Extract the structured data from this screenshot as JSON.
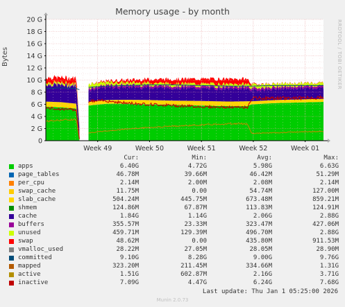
{
  "title": "Memory usage - by month",
  "side_label": "RRDTOOL / TOBI OETIKER",
  "footer": "Last update: Thu Jan  1 05:25:00 2026",
  "generator": "Munin 2.0.73",
  "columns": [
    "Cur:",
    "Min:",
    "Avg:",
    "Max:"
  ],
  "legend": [
    {
      "name": "apps",
      "color": "#00cc00",
      "cur": "6.40G",
      "min": "4.72G",
      "avg": "5.98G",
      "max": "6.63G"
    },
    {
      "name": "page_tables",
      "color": "#0066b3",
      "cur": "46.78M",
      "min": "39.66M",
      "avg": "46.42M",
      "max": "51.29M"
    },
    {
      "name": "per_cpu",
      "color": "#ff8000",
      "cur": "2.14M",
      "min": "2.00M",
      "avg": "2.08M",
      "max": "2.14M"
    },
    {
      "name": "swap_cache",
      "color": "#ffcc00",
      "cur": "11.75M",
      "min": "0.00",
      "avg": "54.74M",
      "max": "127.00M"
    },
    {
      "name": "slab_cache",
      "color": "#ffd700",
      "cur": "504.24M",
      "min": "445.75M",
      "avg": "673.48M",
      "max": "859.21M"
    },
    {
      "name": "shmem",
      "color": "#008f00",
      "cur": "124.86M",
      "min": "67.87M",
      "avg": "113.83M",
      "max": "124.91M"
    },
    {
      "name": "cache",
      "color": "#330099",
      "cur": "1.84G",
      "min": "1.14G",
      "avg": "2.06G",
      "max": "2.88G"
    },
    {
      "name": "buffers",
      "color": "#990099",
      "cur": "355.57M",
      "min": "23.33M",
      "avg": "323.47M",
      "max": "427.06M"
    },
    {
      "name": "unused",
      "color": "#ccff00",
      "cur": "459.71M",
      "min": "129.39M",
      "avg": "496.70M",
      "max": "2.88G"
    },
    {
      "name": "swap",
      "color": "#ff0000",
      "cur": "48.62M",
      "min": "0.00",
      "avg": "435.80M",
      "max": "911.53M"
    },
    {
      "name": "vmalloc_used",
      "color": "#808080",
      "cur": "28.22M",
      "min": "27.05M",
      "avg": "28.05M",
      "max": "28.90M"
    },
    {
      "name": "committed",
      "color": "#004d79",
      "cur": "9.10G",
      "min": "8.28G",
      "avg": "9.00G",
      "max": "9.76G"
    },
    {
      "name": "mapped",
      "color": "#b35a00",
      "cur": "323.20M",
      "min": "211.45M",
      "avg": "334.66M",
      "max": "1.31G"
    },
    {
      "name": "active",
      "color": "#b38f00",
      "cur": "1.51G",
      "min": "602.87M",
      "avg": "2.16G",
      "max": "3.71G"
    },
    {
      "name": "inactive",
      "color": "#bf0000",
      "cur": "7.09G",
      "min": "4.47G",
      "avg": "6.24G",
      "max": "7.68G"
    }
  ],
  "chart_data": {
    "type": "area",
    "ylabel": "Bytes",
    "y_ticks": [
      "0",
      "2 G",
      "4 G",
      "6 G",
      "8 G",
      "10 G",
      "12 G",
      "14 G",
      "16 G",
      "18 G",
      "20 G"
    ],
    "ylim": [
      0,
      20
    ],
    "x_ticks": [
      "Week 49",
      "Week 50",
      "Week 51",
      "Week 52",
      "Week 01"
    ],
    "x_tick_positions": [
      1.7,
      3.4,
      5.1,
      6.8,
      8.5
    ],
    "xlim": [
      0,
      9.1
    ],
    "gaps": [
      [
        1.1,
        1.4
      ]
    ],
    "series_order": [
      "apps",
      "page_tables",
      "per_cpu",
      "swap_cache",
      "slab_cache",
      "shmem",
      "cache",
      "buffers",
      "unused",
      "swap"
    ],
    "stacks": [
      {
        "x": 0.0,
        "apps": 5.6,
        "slab": 0.85,
        "cache": 2.8,
        "buffers": 0.1,
        "unused": 0.3,
        "swap": 0.8,
        "active": 3.2,
        "inactive": 5.4,
        "committed": 8.6
      },
      {
        "x": 0.5,
        "apps": 5.5,
        "slab": 0.85,
        "cache": 2.8,
        "buffers": 0.1,
        "unused": 0.3,
        "swap": 0.85,
        "active": 3.4,
        "inactive": 5.2,
        "committed": 8.7
      },
      {
        "x": 1.0,
        "apps": 5.3,
        "slab": 0.8,
        "cache": 2.9,
        "buffers": 0.1,
        "unused": 0.3,
        "swap": 0.9,
        "active": 3.5,
        "inactive": 5.1,
        "committed": 8.6
      },
      {
        "x": 1.1,
        "apps": 0.3,
        "slab": 0.5,
        "cache": 1.5,
        "buffers": 0.1,
        "unused": 0.5,
        "swap": 0.0,
        "active": 0.2,
        "inactive": 0.3,
        "committed": 8.4
      },
      {
        "x": 1.4,
        "apps": 5.8,
        "slab": 0.6,
        "cache": 2.0,
        "buffers": 0.3,
        "unused": 0.7,
        "swap": 0.0,
        "active": 1.3,
        "inactive": 6.5,
        "committed": 8.8
      },
      {
        "x": 2.0,
        "apps": 6.1,
        "slab": 0.6,
        "cache": 2.1,
        "buffers": 0.35,
        "unused": 0.5,
        "swap": 0.2,
        "active": 1.6,
        "inactive": 6.6,
        "committed": 9.0
      },
      {
        "x": 2.6,
        "apps": 6.1,
        "slab": 0.65,
        "cache": 2.1,
        "buffers": 0.35,
        "unused": 0.4,
        "swap": 0.4,
        "active": 1.9,
        "inactive": 6.2,
        "committed": 9.1
      },
      {
        "x": 3.4,
        "apps": 6.0,
        "slab": 0.7,
        "cache": 2.1,
        "buffers": 0.35,
        "unused": 0.4,
        "swap": 0.6,
        "active": 2.2,
        "inactive": 6.0,
        "committed": 9.2
      },
      {
        "x": 4.2,
        "apps": 5.9,
        "slab": 0.7,
        "cache": 2.1,
        "buffers": 0.35,
        "unused": 0.4,
        "swap": 0.7,
        "active": 2.4,
        "inactive": 5.8,
        "committed": 9.2
      },
      {
        "x": 5.1,
        "apps": 5.8,
        "slab": 0.75,
        "cache": 2.1,
        "buffers": 0.35,
        "unused": 0.4,
        "swap": 0.8,
        "active": 2.6,
        "inactive": 5.6,
        "committed": 9.1
      },
      {
        "x": 6.0,
        "apps": 5.7,
        "slab": 0.75,
        "cache": 2.1,
        "buffers": 0.35,
        "unused": 0.4,
        "swap": 0.85,
        "active": 2.8,
        "inactive": 5.5,
        "committed": 9.0
      },
      {
        "x": 6.6,
        "apps": 5.7,
        "slab": 0.8,
        "cache": 2.1,
        "buffers": 0.35,
        "unused": 0.4,
        "swap": 0.85,
        "active": 2.8,
        "inactive": 5.5,
        "committed": 9.0
      },
      {
        "x": 6.75,
        "apps": 6.0,
        "slab": 0.5,
        "cache": 1.8,
        "buffers": 0.35,
        "unused": 0.6,
        "swap": 0.1,
        "active": 1.2,
        "inactive": 7.0,
        "committed": 9.0
      },
      {
        "x": 7.5,
        "apps": 6.2,
        "slab": 0.5,
        "cache": 1.8,
        "buffers": 0.35,
        "unused": 0.5,
        "swap": 0.05,
        "active": 1.3,
        "inactive": 7.0,
        "committed": 9.1
      },
      {
        "x": 8.3,
        "apps": 6.3,
        "slab": 0.5,
        "cache": 1.85,
        "buffers": 0.35,
        "unused": 0.45,
        "swap": 0.05,
        "active": 1.45,
        "inactive": 7.05,
        "committed": 9.1
      },
      {
        "x": 9.1,
        "apps": 6.4,
        "slab": 0.5,
        "cache": 1.84,
        "buffers": 0.36,
        "unused": 0.46,
        "swap": 0.05,
        "active": 1.51,
        "inactive": 7.09,
        "committed": 9.1
      }
    ]
  }
}
